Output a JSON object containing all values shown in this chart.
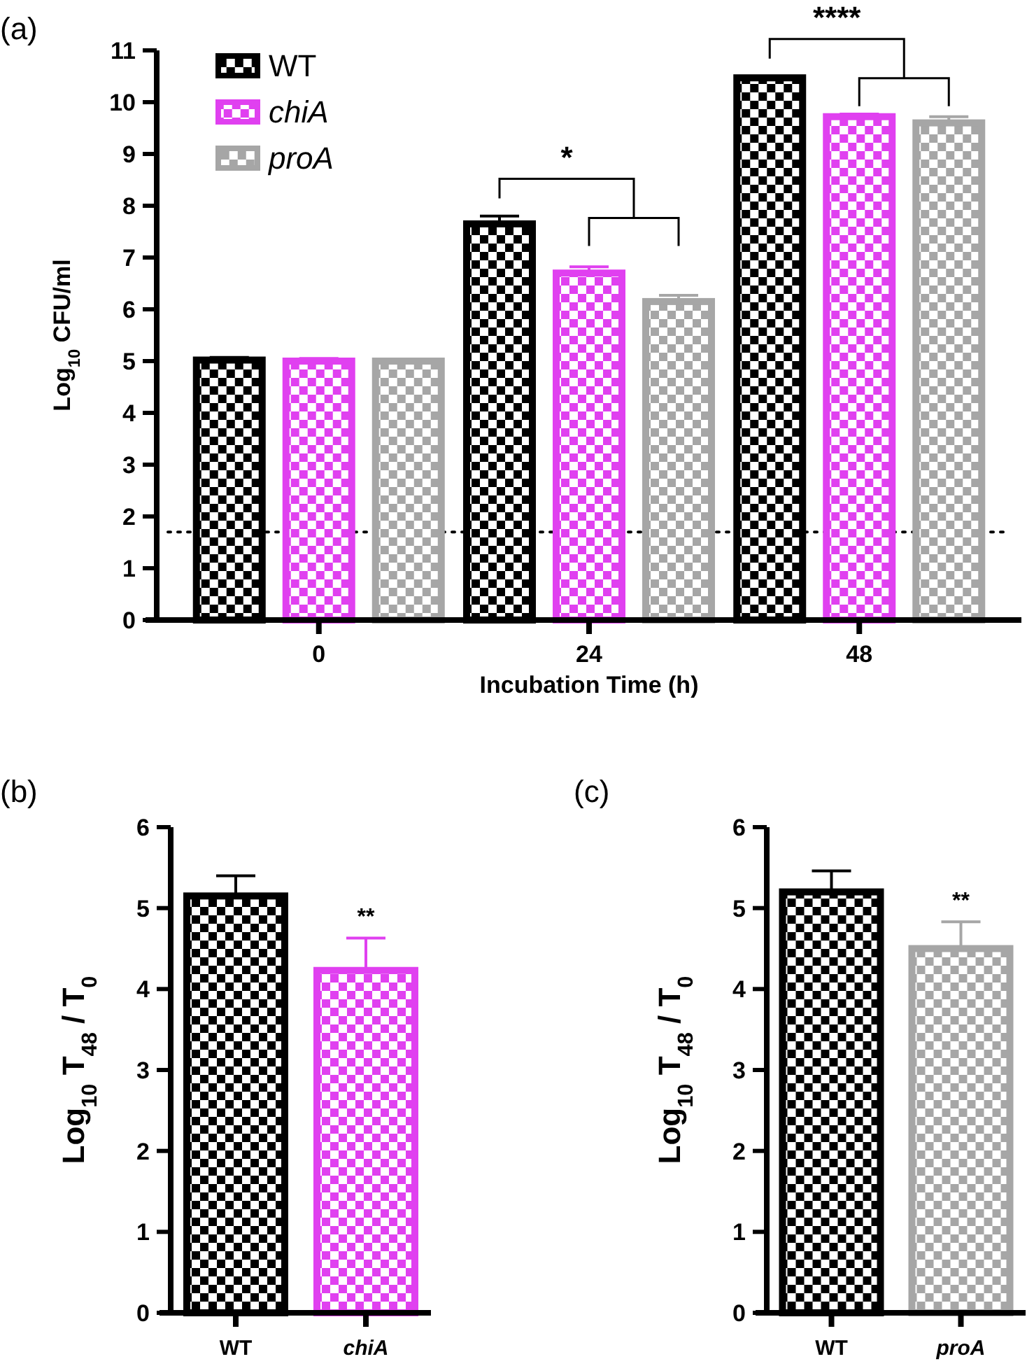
{
  "chart_data": [
    {
      "type": "bar",
      "title": "(a)",
      "xlabel": "Incubation Time (h)",
      "ylabel": "Log$_{10}$ CFU/ml",
      "categories": [
        "0",
        "24",
        "48"
      ],
      "series": [
        {
          "name": "WT",
          "color": "#000000",
          "values": [
            5.02,
            7.65,
            10.47
          ],
          "errors": [
            0.05,
            0.15,
            0.03
          ]
        },
        {
          "name": "chiA",
          "color": "#e040f0",
          "values": [
            5.0,
            6.7,
            9.72
          ],
          "errors": [
            0.05,
            0.12,
            0.05
          ]
        },
        {
          "name": "proA",
          "color": "#a6a6a6",
          "values": [
            5.0,
            6.15,
            9.6
          ],
          "errors": [
            0.04,
            0.12,
            0.12
          ]
        }
      ],
      "ylim": [
        0,
        11
      ],
      "yticks": [
        0,
        1,
        2,
        3,
        4,
        5,
        6,
        7,
        8,
        9,
        10,
        11
      ],
      "grid": false,
      "legend": "top left",
      "ref_lines": [
        {
          "axis": "y",
          "value": 1.7,
          "line_style": "dotted",
          "color": "#000000"
        }
      ],
      "annotations": [
        "*",
        "****"
      ]
    },
    {
      "type": "bar",
      "title": "(b)",
      "ylabel": "Log$_{10}$ T$_{48}$ / T$_{0}$",
      "categories": [
        "WT",
        "chiA"
      ],
      "values": [
        5.15,
        4.23
      ],
      "errors": [
        0.25,
        0.4
      ],
      "colors": [
        "#000000",
        "#e040f0"
      ],
      "ylim": [
        0,
        6
      ],
      "yticks": [
        0,
        1,
        2,
        3,
        4,
        5,
        6
      ],
      "grid": false,
      "legend": false,
      "annotations": [
        "**"
      ]
    },
    {
      "type": "bar",
      "title": "(c)",
      "ylabel": "Log$_{10}$ T$_{48}$ / T$_{0}$",
      "categories": [
        "WT",
        "proA"
      ],
      "values": [
        5.2,
        4.5
      ],
      "errors": [
        0.26,
        0.33
      ],
      "colors": [
        "#000000",
        "#a6a6a6"
      ],
      "ylim": [
        0,
        6
      ],
      "yticks": [
        0,
        1,
        2,
        3,
        4,
        5,
        6
      ],
      "grid": false,
      "legend": false,
      "annotations": [
        "**"
      ]
    }
  ]
}
